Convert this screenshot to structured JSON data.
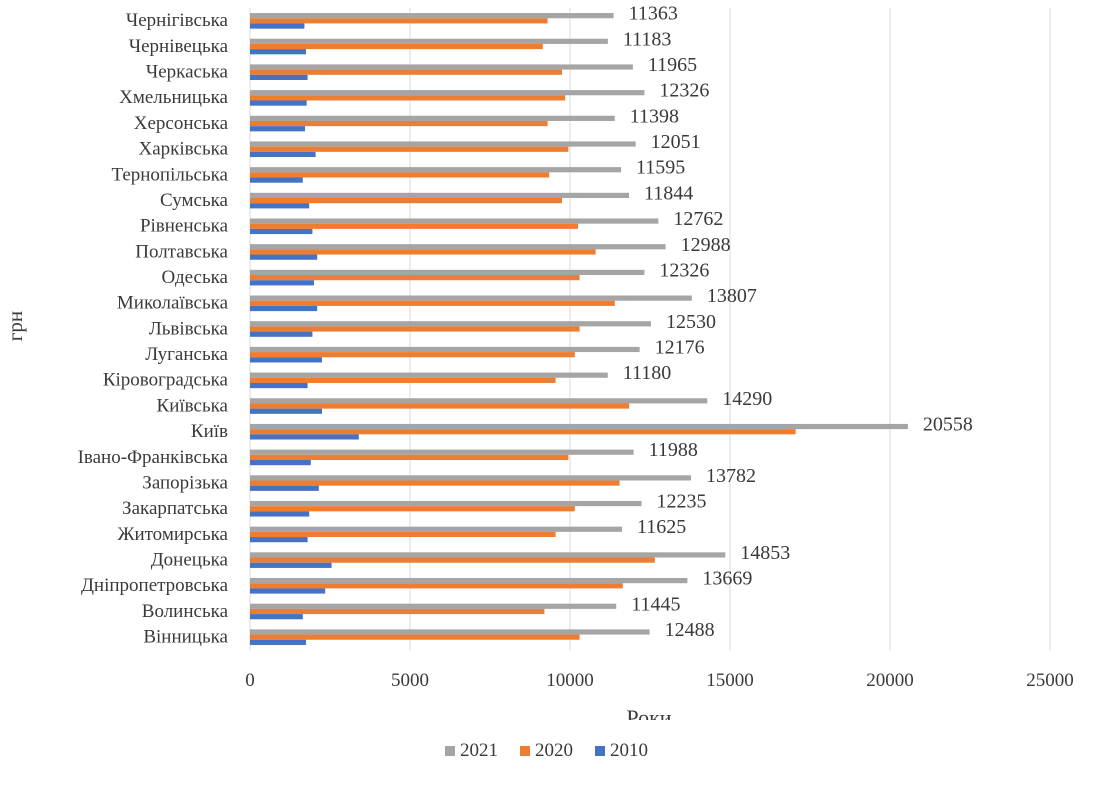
{
  "chart_data": {
    "type": "bar",
    "orientation": "horizontal",
    "title": "",
    "xlabel": "Роки",
    "ylabel": "грн",
    "xlim": [
      0,
      25000
    ],
    "xticks": [
      "0",
      "5000",
      "10000",
      "15000",
      "20000",
      "25000"
    ],
    "grid": true,
    "legend_position": "bottom",
    "categories": [
      "Чернігівська",
      "Чернівецька",
      "Черкаська",
      "Хмельницька",
      "Херсонська",
      "Харківська",
      "Тернопільська",
      "Сумська",
      "Рівненська",
      "Полтавська",
      "Одеська",
      "Миколаївська",
      "Львівська",
      "Луганська",
      "Кіровоградська",
      "Київська",
      "Київ",
      "Івано-Франківська",
      "Запорізька",
      "Закарпатська",
      "Житомирська",
      "Донецька",
      "Дніпропетровська",
      "Волинська",
      "Вінницька"
    ],
    "series": [
      {
        "name": "2021",
        "color": "#a5a5a5",
        "values": [
          11363,
          11183,
          11965,
          12326,
          11398,
          12051,
          11595,
          11844,
          12762,
          12988,
          12326,
          13807,
          12530,
          12176,
          11180,
          14290,
          20558,
          11988,
          13782,
          12235,
          11625,
          14853,
          13669,
          11445,
          12488
        ],
        "labels": [
          "11363",
          "11183",
          "11965",
          "12326",
          "11398",
          "12051",
          "11595",
          "11844",
          "12762",
          "12988",
          "12326",
          "13807",
          "12530",
          "12176",
          "11180",
          "14290",
          "20558",
          "11988",
          "13782",
          "12235",
          "11625",
          "14853",
          "13669",
          "11445",
          "12488"
        ]
      },
      {
        "name": "2020",
        "color": "#ed7d31",
        "values": [
          9300,
          9150,
          9750,
          9850,
          9300,
          9950,
          9350,
          9750,
          10250,
          10800,
          10300,
          11400,
          10300,
          10150,
          9550,
          11850,
          17050,
          9950,
          11550,
          10150,
          9550,
          12650,
          11650,
          9200,
          10300
        ]
      },
      {
        "name": "2010",
        "color": "#4472c4",
        "values": [
          1700,
          1750,
          1800,
          1770,
          1720,
          2050,
          1650,
          1850,
          1950,
          2100,
          2000,
          2100,
          1950,
          2250,
          1800,
          2250,
          3400,
          1900,
          2150,
          1850,
          1800,
          2550,
          2350,
          1650,
          1750
        ]
      }
    ]
  }
}
